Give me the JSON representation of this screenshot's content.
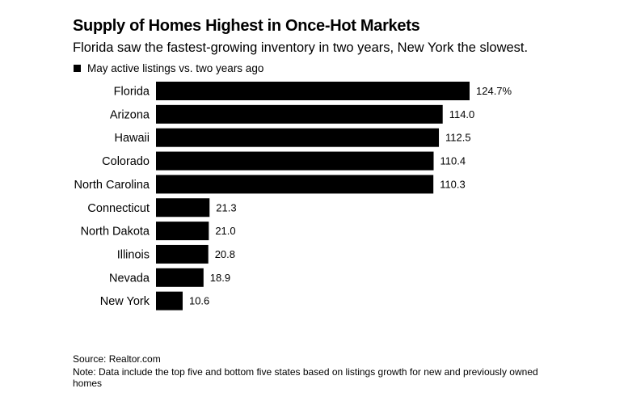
{
  "title": "Supply of Homes Highest in Once-Hot Markets",
  "subtitle": "Florida saw the fastest-growing inventory in two years, New York the slowest.",
  "legend": {
    "label": "May active listings vs. two years ago"
  },
  "source": "Source: Realtor.com",
  "note": "Note: Data include the top five and bottom five states based on listings growth for new and previously owned homes",
  "colors": {
    "bar": "#000000",
    "text": "#000000",
    "background": "#ffffff"
  },
  "chart_data": {
    "type": "bar",
    "orientation": "horizontal",
    "categories": [
      "Florida",
      "Arizona",
      "Hawaii",
      "Colorado",
      "North Carolina",
      "Connecticut",
      "North Dakota",
      "Illinois",
      "Nevada",
      "New York"
    ],
    "series": [
      {
        "name": "May active listings vs. two years ago",
        "values": [
          124.7,
          114.0,
          112.5,
          110.4,
          110.3,
          21.3,
          21.0,
          20.8,
          18.9,
          10.6
        ],
        "value_labels": [
          "124.7%",
          "114.0",
          "112.5",
          "110.4",
          "110.3",
          "21.3",
          "21.0",
          "20.8",
          "18.9",
          "10.6"
        ]
      }
    ],
    "xlim": [
      0,
      124.7
    ],
    "grid": false,
    "legend_position": "top-left"
  }
}
